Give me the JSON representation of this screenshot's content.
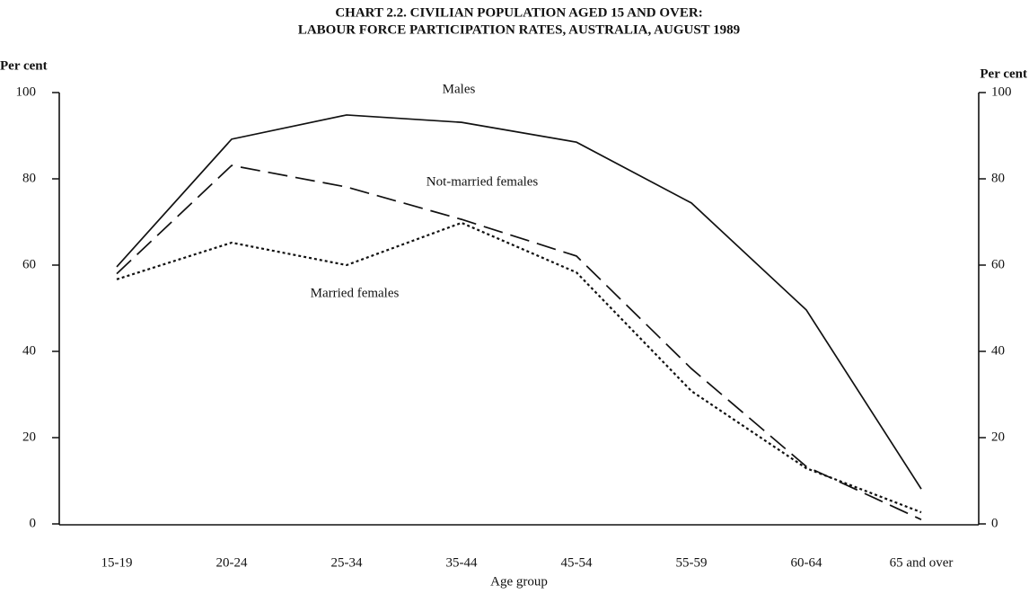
{
  "chart_data": {
    "type": "line",
    "title": [
      "CHART 2.2.  CIVILIAN POPULATION AGED 15 AND OVER:",
      "LABOUR FORCE PARTICIPATION RATES, AUSTRALIA, AUGUST 1989"
    ],
    "xlabel": "Age group",
    "ylabel": "Per cent",
    "y2label": "Per cent",
    "categories": [
      "15-19",
      "20-24",
      "25-34",
      "35-44",
      "45-54",
      "55-59",
      "60-64",
      "65 and over"
    ],
    "series": [
      {
        "name": "Males",
        "color": "#111111",
        "style": "solid",
        "values": [
          59.6,
          89.2,
          94.8,
          93.1,
          88.5,
          74.4,
          49.6,
          8.1
        ]
      },
      {
        "name": "Not-married females",
        "color": "#111111",
        "style": "dashed",
        "values": [
          58,
          83.1,
          78.1,
          70.6,
          62.1,
          36,
          13.3,
          1
        ]
      },
      {
        "name": "Married females",
        "color": "#111111",
        "style": "dotted",
        "values": [
          56.7,
          65.2,
          60,
          69.8,
          58.3,
          30.8,
          12.9,
          2.7
        ]
      }
    ],
    "ylim": [
      0,
      100
    ],
    "yticks": [
      0,
      20,
      40,
      60,
      80,
      100
    ],
    "y2lim": [
      0,
      100
    ],
    "y2ticks": [
      0,
      20,
      40,
      60,
      80,
      100
    ],
    "grid": false
  }
}
